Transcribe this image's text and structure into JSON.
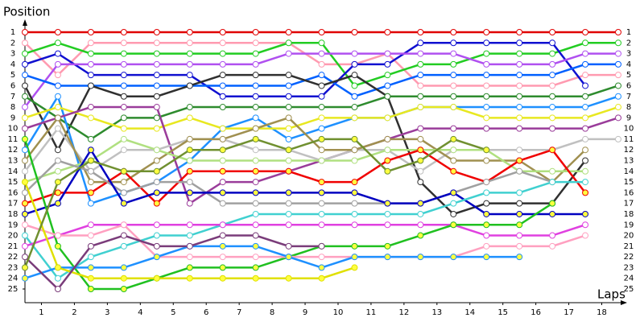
{
  "chart_data": {
    "type": "line",
    "y_title": "Position",
    "x_title": "Laps",
    "xlim": [
      0,
      18
    ],
    "ylim": [
      25,
      1
    ],
    "xticks": [
      {
        "value": 0.5,
        "label": "1"
      },
      {
        "value": 1.5,
        "label": "2"
      },
      {
        "value": 2.5,
        "label": "3"
      },
      {
        "value": 3.5,
        "label": "4"
      },
      {
        "value": 4.5,
        "label": "5"
      },
      {
        "value": 5.5,
        "label": "6"
      },
      {
        "value": 6.5,
        "label": "7"
      },
      {
        "value": 7.5,
        "label": "8"
      },
      {
        "value": 8.5,
        "label": "9"
      },
      {
        "value": 9.5,
        "label": "10"
      },
      {
        "value": 10.5,
        "label": "11"
      },
      {
        "value": 11.5,
        "label": "12"
      },
      {
        "value": 12.5,
        "label": "13"
      },
      {
        "value": 13.5,
        "label": "14"
      },
      {
        "value": 14.5,
        "label": "15"
      },
      {
        "value": 15.5,
        "label": "16"
      },
      {
        "value": 16.5,
        "label": "17"
      },
      {
        "value": 17.5,
        "label": "18"
      }
    ],
    "yticks": [
      1,
      2,
      3,
      4,
      5,
      6,
      7,
      8,
      9,
      10,
      11,
      12,
      13,
      14,
      15,
      16,
      17,
      18,
      19,
      20,
      21,
      22,
      23,
      24,
      25
    ],
    "x": [
      0,
      1,
      2,
      3,
      4,
      5,
      6,
      7,
      8,
      9,
      10,
      11,
      12,
      13,
      14,
      15,
      16,
      17,
      18
    ],
    "series": [
      {
        "color": "#e00000",
        "marker_fill": "#ffffff",
        "values": [
          1,
          1,
          1,
          1,
          1,
          1,
          1,
          1,
          1,
          1,
          1,
          1,
          1,
          1,
          1,
          1,
          1,
          1,
          1
        ]
      },
      {
        "color": "#ff9ab0",
        "marker_fill": "#ffffff",
        "values": [
          2,
          5,
          2,
          2,
          2,
          2,
          2,
          2,
          2,
          4,
          4,
          3,
          6,
          6,
          6,
          6,
          6,
          5,
          5
        ]
      },
      {
        "color": "#22cc22",
        "marker_fill": "#ffffff",
        "values": [
          3,
          2,
          3,
          3,
          3,
          3,
          3,
          3,
          2,
          2,
          6,
          5,
          4,
          4,
          3,
          3,
          3,
          2,
          2
        ]
      },
      {
        "color": "#1010d0",
        "marker_fill": "#ffffff",
        "values": [
          4,
          3,
          5,
          5,
          5,
          5,
          7,
          7,
          7,
          7,
          4,
          4,
          2,
          2,
          2,
          2,
          2,
          6,
          null
        ]
      },
      {
        "color": "#b050f0",
        "marker_fill": "#ffffff",
        "values": [
          8,
          4,
          4,
          4,
          4,
          4,
          4,
          4,
          3,
          3,
          3,
          3,
          3,
          3,
          4,
          4,
          4,
          3,
          3
        ]
      },
      {
        "color": "#0060ff",
        "marker_fill": "#ffffff",
        "values": [
          5,
          6,
          6,
          6,
          6,
          6,
          6,
          6,
          6,
          5,
          7,
          6,
          5,
          5,
          5,
          5,
          5,
          4,
          4
        ]
      },
      {
        "color": "#303030",
        "marker_fill": "#ffffff",
        "values": [
          6,
          12,
          6,
          7,
          7,
          6,
          5,
          5,
          5,
          6,
          5,
          7,
          15,
          18,
          17,
          17,
          17,
          13,
          null
        ]
      },
      {
        "color": "#2e8b2e",
        "marker_fill": "#ffffff",
        "values": [
          7,
          9,
          11,
          9,
          9,
          8,
          8,
          8,
          8,
          8,
          8,
          7,
          7,
          7,
          7,
          7,
          7,
          7,
          6
        ]
      },
      {
        "color": "#1e90ff",
        "marker_fill": "#ffffff",
        "values": [
          12,
          7,
          17,
          16,
          15,
          13,
          10,
          9,
          11,
          10,
          9,
          9,
          8,
          8,
          8,
          8,
          8,
          8,
          7
        ]
      },
      {
        "color": "#e8e820",
        "marker_fill": "#ffffff",
        "values": [
          9,
          8,
          9,
          10,
          10,
          9,
          10,
          10,
          10,
          9,
          9,
          9,
          8,
          8,
          9,
          9,
          9,
          9,
          8
        ]
      },
      {
        "color": "#9a3c9a",
        "marker_fill": "#ffffff",
        "values": [
          10,
          9,
          8,
          8,
          8,
          17,
          15,
          15,
          14,
          13,
          12,
          11,
          10,
          10,
          10,
          10,
          10,
          10,
          9
        ]
      },
      {
        "color": "#c0c0c0",
        "marker_fill": "#ffffff",
        "values": [
          14,
          10,
          14,
          12,
          12,
          11,
          11,
          12,
          12,
          13,
          12,
          12,
          14,
          12,
          12,
          12,
          12,
          11,
          11
        ]
      },
      {
        "color": "#a09050",
        "marker_fill": "#ffffff",
        "values": [
          13,
          9,
          15,
          15,
          13,
          11,
          11,
          10,
          9,
          12,
          12,
          11,
          11,
          13,
          13,
          13,
          15,
          12,
          null
        ]
      },
      {
        "color": "#b0e080",
        "marker_fill": "#ffffff",
        "values": [
          15,
          14,
          13,
          11,
          12,
          13,
          13,
          13,
          13,
          13,
          13,
          12,
          12,
          12,
          12,
          14,
          14,
          14,
          null
        ]
      },
      {
        "color": "#f00000",
        "marker_fill": "#ffff40",
        "values": [
          17,
          16,
          16,
          14,
          17,
          14,
          14,
          14,
          14,
          15,
          15,
          13,
          12,
          14,
          15,
          13,
          12,
          16,
          null
        ]
      },
      {
        "color": "#a0a0a0",
        "marker_fill": "#ffffff",
        "values": [
          16,
          13,
          14,
          16,
          15,
          15,
          17,
          17,
          17,
          17,
          17,
          17,
          17,
          16,
          15,
          14,
          15,
          null,
          null
        ]
      },
      {
        "color": "#0000c0",
        "marker_fill": "#ffff40",
        "values": [
          18,
          17,
          12,
          17,
          16,
          16,
          16,
          16,
          16,
          16,
          16,
          17,
          17,
          16,
          18,
          18,
          18,
          18,
          null
        ]
      },
      {
        "color": "#40d0d0",
        "marker_fill": "#ffffff",
        "values": [
          20,
          24,
          22,
          21,
          20,
          20,
          19,
          18,
          18,
          18,
          18,
          18,
          18,
          17,
          16,
          16,
          15,
          15,
          null
        ]
      },
      {
        "color": "#e040e0",
        "marker_fill": "#ffffff",
        "values": [
          21,
          20,
          19,
          19,
          19,
          19,
          19,
          19,
          19,
          19,
          19,
          19,
          19,
          19,
          20,
          20,
          20,
          19,
          null
        ]
      },
      {
        "color": "#20c020",
        "marker_fill": "#ffff40",
        "values": [
          11,
          21,
          25,
          25,
          24,
          23,
          23,
          23,
          22,
          21,
          21,
          21,
          20,
          19,
          19,
          19,
          17,
          null,
          null
        ]
      },
      {
        "color": "#ffa0c0",
        "marker_fill": "#ffffff",
        "values": [
          19,
          20,
          20,
          19,
          22,
          22,
          22,
          22,
          22,
          22,
          22,
          22,
          22,
          22,
          21,
          21,
          21,
          20,
          null
        ]
      },
      {
        "color": "#1e90ff",
        "marker_fill": "#ffff40",
        "values": [
          24,
          23,
          23,
          23,
          22,
          21,
          21,
          21,
          22,
          23,
          22,
          22,
          22,
          22,
          22,
          22,
          null,
          null,
          null
        ]
      },
      {
        "color": "#e0e000",
        "marker_fill": "#ffff40",
        "values": [
          15,
          23,
          24,
          24,
          24,
          24,
          24,
          24,
          24,
          24,
          23,
          null,
          null,
          null,
          null,
          null,
          null,
          null,
          null
        ]
      },
      {
        "color": "#7a3c7a",
        "marker_fill": "#ffffff",
        "values": [
          22,
          25,
          21,
          20,
          21,
          21,
          20,
          20,
          21,
          21,
          null,
          null,
          null,
          null,
          null,
          null,
          null,
          null,
          null
        ]
      },
      {
        "color": "#709030",
        "marker_fill": "#ffff40",
        "values": [
          23,
          15,
          13,
          14,
          14,
          12,
          12,
          11,
          12,
          11,
          11,
          14,
          13,
          11,
          12,
          null,
          null,
          null,
          null
        ]
      }
    ]
  }
}
